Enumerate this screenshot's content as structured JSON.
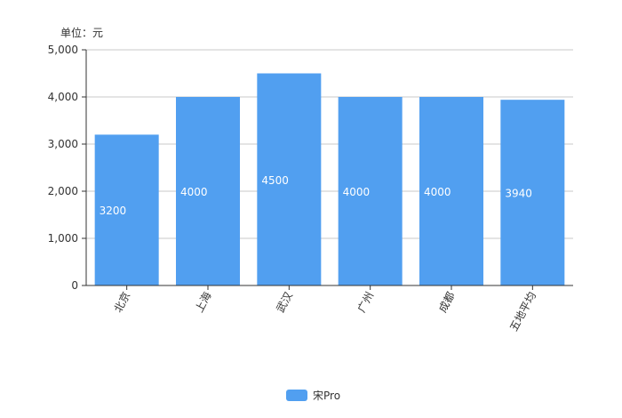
{
  "chart_data": {
    "type": "bar",
    "unit_label": "单位：元",
    "categories": [
      "北京",
      "上海",
      "武汉",
      "广州",
      "成都",
      "五地平均"
    ],
    "series": [
      {
        "name": "宋Pro",
        "values": [
          3200,
          4000,
          4500,
          4000,
          4000,
          3940
        ],
        "data_labels": [
          "3200",
          "4000",
          "4500",
          "4000",
          "4000",
          "3940"
        ]
      }
    ],
    "ylim": [
      0,
      5000
    ],
    "yticks": [
      0,
      1000,
      2000,
      3000,
      4000,
      5000
    ],
    "ytick_labels": [
      "0",
      "1,000",
      "2,000",
      "3,000",
      "4,000",
      "5,000"
    ],
    "grid": true,
    "legend_position": "bottom",
    "colors": {
      "bar": "#519ff0",
      "grid": "#c8c8c8",
      "axis": "#333333",
      "text": "#333333",
      "data_label": "#ffffff"
    }
  }
}
